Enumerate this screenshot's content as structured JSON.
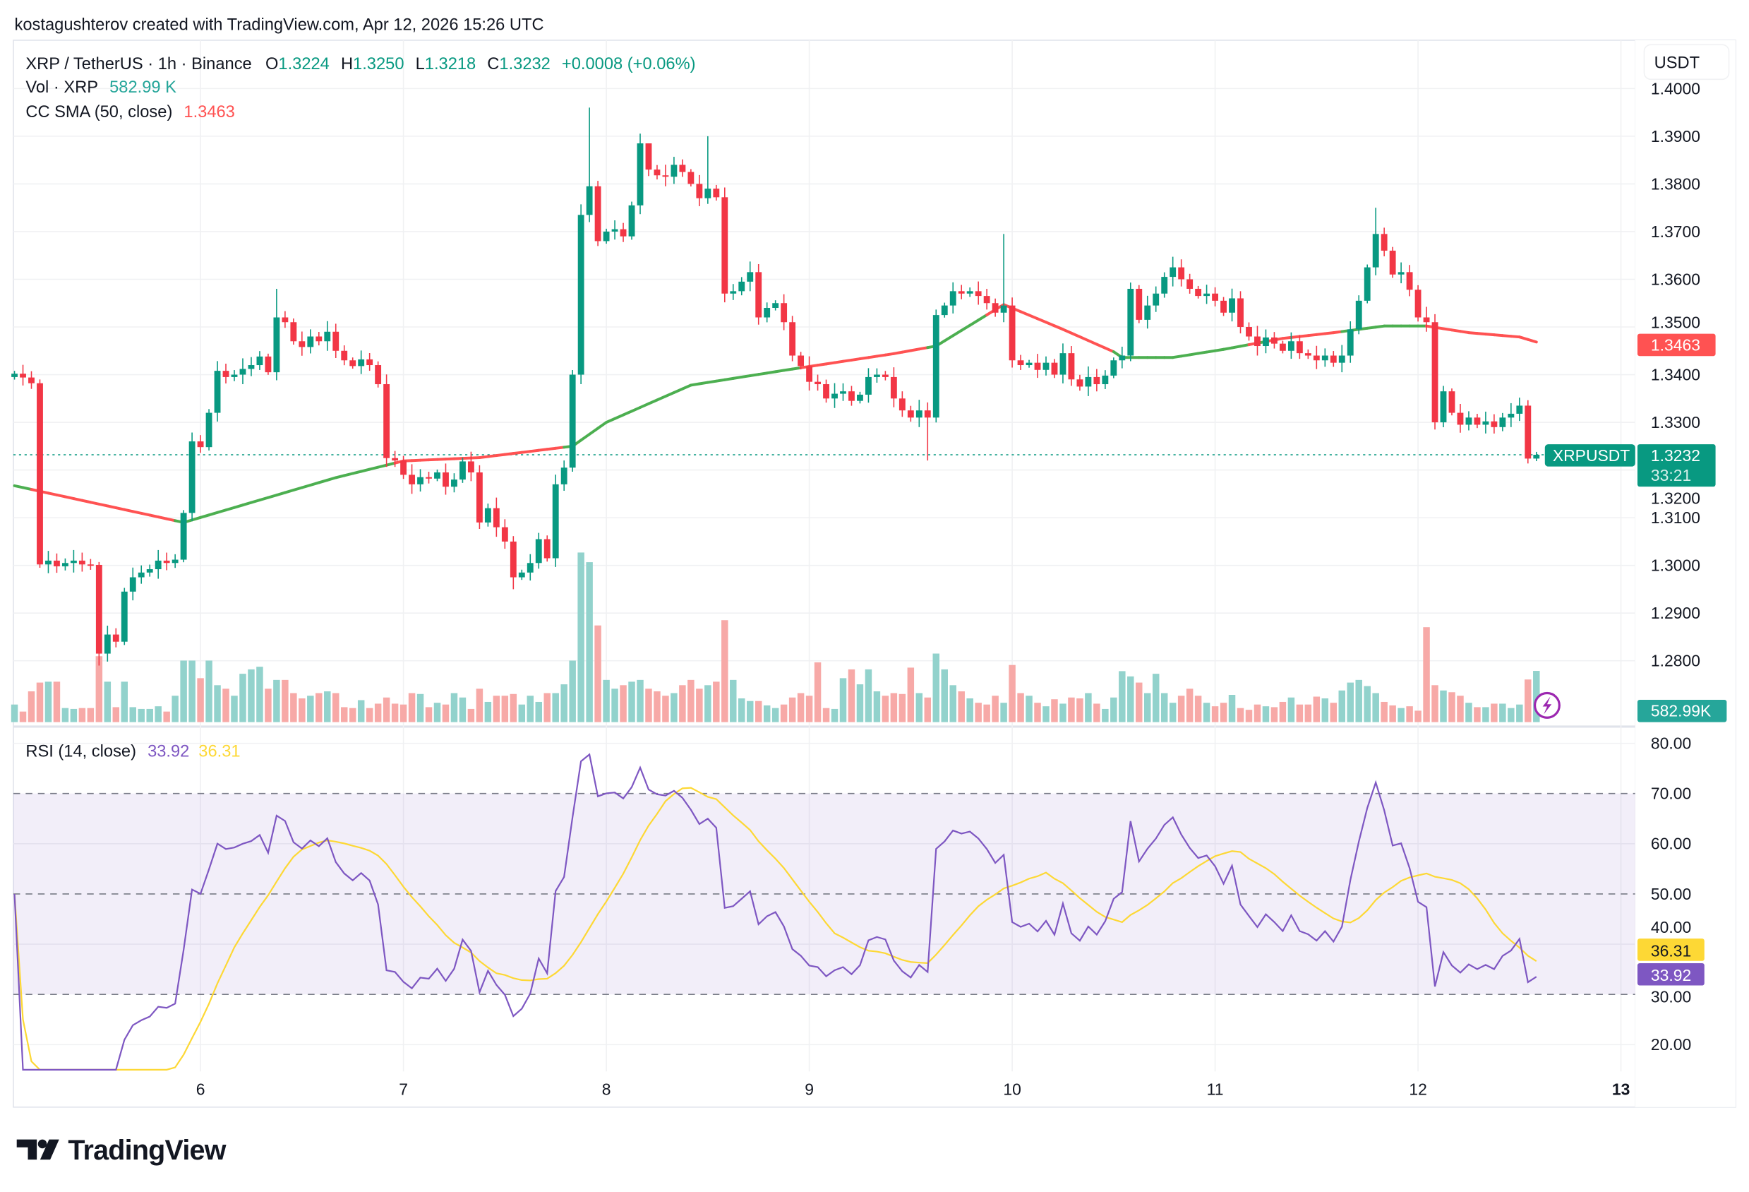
{
  "header": {
    "credit": "kostagushterov created with TradingView.com, Apr 12, 2026 15:26 UTC"
  },
  "legend": {
    "symbol": "XRP / TetherUS · 1h · Binance",
    "o_label": "O",
    "o": "1.3224",
    "h_label": "H",
    "h": "1.3250",
    "l_label": "L",
    "l": "1.3218",
    "c_label": "C",
    "c": "1.3232",
    "change": "+0.0008 (+0.06%)",
    "vol_label": "Vol · XRP",
    "vol": "582.99 K",
    "sma_label": "CC SMA (50, close)",
    "sma": "1.3463",
    "rsi_label": "RSI (14, close)",
    "rsi": "33.92",
    "rsi_ma": "36.31"
  },
  "axis": {
    "currency_button": "USDT",
    "price_ticks": [
      "1.2800",
      "1.2900",
      "1.3000",
      "1.3100",
      "1.3200",
      "1.3300",
      "1.3400",
      "1.3500",
      "1.3600",
      "1.3700",
      "1.3800",
      "1.3900",
      "1.4000"
    ],
    "rsi_ticks": [
      "20.00",
      "30.00",
      "40.00",
      "50.00",
      "60.00",
      "70.00",
      "80.00"
    ],
    "days": [
      "6",
      "7",
      "8",
      "9",
      "10",
      "11",
      "12",
      "13"
    ]
  },
  "badges": {
    "sma": "1.3463",
    "symbol": "XRPUSDT",
    "price": "1.3232",
    "countdown": "33:21",
    "volume": "582.99K",
    "rsi_ma": "36.31",
    "rsi": "33.92"
  },
  "colors": {
    "up": "#089981",
    "down": "#f23645",
    "sma_up": "#4caf50",
    "sma_down": "#ff5252",
    "rsi": "#7e57c2",
    "rsi_ma": "#fdd835",
    "vol_up": "#92d2cc",
    "vol_down": "#f7a9a7"
  },
  "logo": {
    "text": "TradingView"
  },
  "chart_data": {
    "type": "candlestick",
    "interval": "1h",
    "first_candle": "Apr 5 02:00",
    "ylim": [
      1.275,
      1.401
    ],
    "rsi_lim": [
      15,
      82
    ],
    "rsi_bands": [
      30,
      50,
      70
    ],
    "first_open": 1.3395,
    "closes": [
      1.3402,
      1.3394,
      1.3382,
      1.3002,
      1.301,
      1.2998,
      1.3005,
      1.301,
      1.3002,
      1.3001,
      1.2815,
      1.2855,
      1.284,
      1.2945,
      1.2975,
      1.2985,
      1.2992,
      1.301,
      1.3005,
      1.3012,
      1.311,
      1.326,
      1.3248,
      1.332,
      1.3408,
      1.3395,
      1.34,
      1.3412,
      1.342,
      1.3438,
      1.3405,
      1.352,
      1.351,
      1.347,
      1.3458,
      1.348,
      1.347,
      1.349,
      1.345,
      1.343,
      1.3418,
      1.3432,
      1.342,
      1.338,
      1.3225,
      1.322,
      1.319,
      1.317,
      1.3185,
      1.3182,
      1.3195,
      1.3165,
      1.318,
      1.3218,
      1.3195,
      1.309,
      1.312,
      1.308,
      1.305,
      1.2975,
      1.2985,
      1.3005,
      1.3055,
      1.3015,
      1.317,
      1.3205,
      1.34,
      1.3735,
      1.3795,
      1.368,
      1.37,
      1.3705,
      1.369,
      1.3755,
      1.3885,
      1.383,
      1.3818,
      1.3815,
      1.384,
      1.3825,
      1.38,
      1.377,
      1.379,
      1.3772,
      1.357,
      1.3575,
      1.3595,
      1.3615,
      1.352,
      1.354,
      1.355,
      1.351,
      1.344,
      1.3418,
      1.3385,
      1.338,
      1.335,
      1.336,
      1.3365,
      1.3345,
      1.3358,
      1.3395,
      1.34,
      1.3395,
      1.335,
      1.3325,
      1.331,
      1.3325,
      1.331,
      1.3525,
      1.3545,
      1.3575,
      1.357,
      1.3575,
      1.3565,
      1.355,
      1.353,
      1.3545,
      1.343,
      1.342,
      1.3425,
      1.341,
      1.3425,
      1.34,
      1.3445,
      1.339,
      1.3375,
      1.3395,
      1.338,
      1.3398,
      1.343,
      1.344,
      1.358,
      1.3515,
      1.3545,
      1.357,
      1.3605,
      1.3625,
      1.36,
      1.358,
      1.3565,
      1.357,
      1.3555,
      1.353,
      1.356,
      1.35,
      1.348,
      1.346,
      1.3478,
      1.3465,
      1.345,
      1.347,
      1.3445,
      1.344,
      1.343,
      1.344,
      1.3425,
      1.344,
      1.3495,
      1.3555,
      1.3625,
      1.3695,
      1.366,
      1.361,
      1.3615,
      1.3578,
      1.352,
      1.351,
      1.33,
      1.3365,
      1.332,
      1.3295,
      1.331,
      1.3295,
      1.3302,
      1.329,
      1.331,
      1.3318,
      1.3335,
      1.3224,
      1.3232
    ],
    "wick_highs": {
      "31": 1.358,
      "68": 1.396,
      "75": 1.3885,
      "82": 1.39,
      "117": 1.3695,
      "161": 1.375
    },
    "wick_lows": {
      "10": 1.279,
      "59": 1.295,
      "108": 1.322
    },
    "volume_k": [
      200,
      120,
      350,
      450,
      460,
      460,
      160,
      150,
      160,
      160,
      750,
      460,
      170,
      460,
      170,
      150,
      150,
      180,
      120,
      300,
      700,
      700,
      500,
      700,
      420,
      380,
      300,
      550,
      600,
      630,
      380,
      480,
      480,
      330,
      270,
      300,
      330,
      350,
      330,
      170,
      160,
      250,
      160,
      210,
      280,
      210,
      200,
      330,
      320,
      170,
      220,
      200,
      330,
      280,
      150,
      380,
      230,
      300,
      300,
      320,
      200,
      300,
      230,
      330,
      330,
      430,
      700,
      1930,
      1820,
      1100,
      480,
      380,
      420,
      460,
      480,
      380,
      350,
      300,
      330,
      420,
      480,
      380,
      420,
      460,
      1160,
      480,
      270,
      240,
      240,
      190,
      160,
      200,
      280,
      330,
      300,
      680,
      160,
      150,
      500,
      600,
      430,
      600,
      350,
      300,
      330,
      320,
      620,
      330,
      280,
      780,
      600,
      420,
      350,
      270,
      220,
      200,
      300,
      220,
      650,
      330,
      300,
      220,
      180,
      260,
      210,
      280,
      270,
      330,
      210,
      150,
      280,
      580,
      520,
      450,
      330,
      550,
      330,
      220,
      300,
      380,
      300,
      220,
      180,
      220,
      310,
      160,
      140,
      200,
      180,
      170,
      230,
      280,
      200,
      200,
      290,
      270,
      220,
      360,
      450,
      480,
      410,
      330,
      230,
      190,
      160,
      180,
      130,
      1080,
      420,
      360,
      340,
      300,
      220,
      170,
      170,
      210,
      210,
      160,
      200,
      485,
      583
    ],
    "sma50": [
      [
        0,
        1.3167
      ],
      [
        20,
        1.309
      ],
      [
        38,
        1.3184
      ],
      [
        46,
        1.3219
      ],
      [
        55,
        1.3226
      ],
      [
        66,
        1.325
      ],
      [
        70,
        1.33
      ],
      [
        80,
        1.3378
      ],
      [
        91,
        1.3409
      ],
      [
        104,
        1.3444
      ],
      [
        109,
        1.346
      ],
      [
        117,
        1.3547
      ],
      [
        124,
        1.3495
      ],
      [
        130,
        1.3448
      ],
      [
        131,
        1.3436
      ],
      [
        137,
        1.3436
      ],
      [
        143,
        1.3453
      ],
      [
        150,
        1.3476
      ],
      [
        156,
        1.3488
      ],
      [
        162,
        1.3502
      ],
      [
        167,
        1.3502
      ],
      [
        172,
        1.3488
      ],
      [
        178,
        1.3479
      ],
      [
        181,
        1.3463
      ]
    ]
  }
}
